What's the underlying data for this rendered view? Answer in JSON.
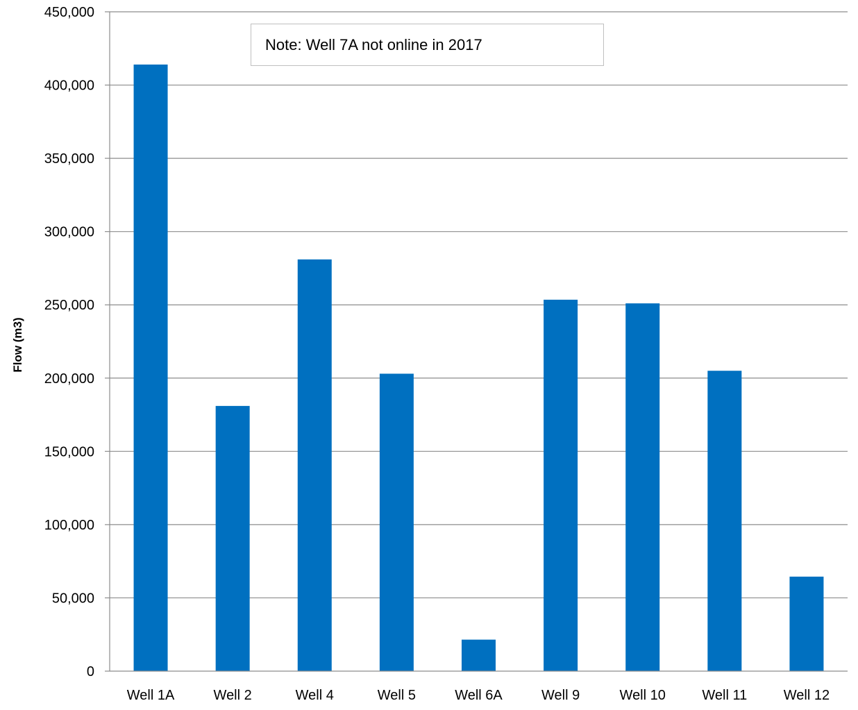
{
  "chart_data": {
    "type": "bar",
    "title": "",
    "xlabel": "",
    "ylabel": "Flow (m3)",
    "categories": [
      "Well 1A",
      "Well 2",
      "Well 4",
      "Well 5",
      "Well 6A",
      "Well 9",
      "Well 10",
      "Well 11",
      "Well 12"
    ],
    "values": [
      414000,
      181000,
      281000,
      203000,
      21500,
      253500,
      251000,
      205000,
      64500
    ],
    "ylim": [
      0,
      450000
    ],
    "y_ticks": [
      0,
      50000,
      100000,
      150000,
      200000,
      250000,
      300000,
      350000,
      400000,
      450000
    ],
    "y_tick_labels": [
      "0",
      "50,000",
      "100,000",
      "150,000",
      "200,000",
      "250,000",
      "300,000",
      "350,000",
      "400,000",
      "450,000"
    ],
    "grid": true,
    "bar_color": "#0070c0",
    "annotation": "Note: Well 7A not online in 2017"
  }
}
